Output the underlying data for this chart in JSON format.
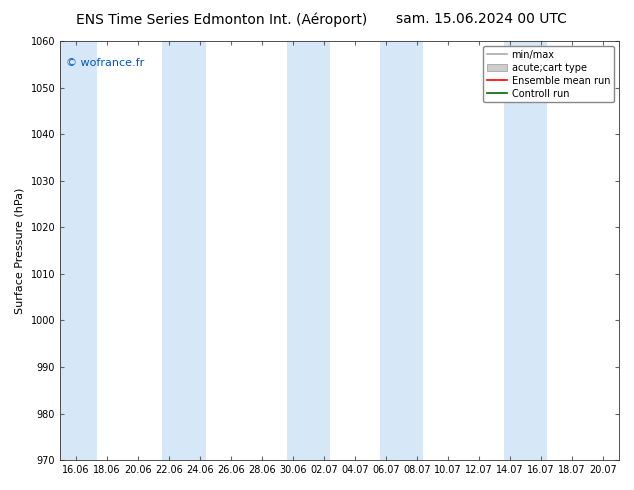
{
  "title_left": "ENS Time Series Edmonton Int. (Aéroport)",
  "title_right": "sam. 15.06.2024 00 UTC",
  "ylabel": "Surface Pressure (hPa)",
  "ylim": [
    970,
    1060
  ],
  "yticks": [
    970,
    980,
    990,
    1000,
    1010,
    1020,
    1030,
    1040,
    1050,
    1060
  ],
  "xtick_labels": [
    "16.06",
    "18.06",
    "20.06",
    "22.06",
    "24.06",
    "26.06",
    "28.06",
    "30.06",
    "02.07",
    "04.07",
    "06.07",
    "08.07",
    "10.07",
    "12.07",
    "14.07",
    "16.07",
    "18.07",
    "20.07"
  ],
  "background_color": "#ffffff",
  "plot_bg_color": "#ffffff",
  "shaded_band_color": "#d6e8f7",
  "shaded_ranges": [
    [
      -0.5,
      0.7
    ],
    [
      2.8,
      4.2
    ],
    [
      6.8,
      8.2
    ],
    [
      9.8,
      11.2
    ],
    [
      13.8,
      15.2
    ]
  ],
  "watermark_text": "© wofrance.fr",
  "watermark_color": "#0055cc",
  "legend_entries": [
    {
      "label": "min/max",
      "color": "#aaaaaa",
      "lw": 1.2,
      "type": "line"
    },
    {
      "label": "acute;cart type",
      "color": "#cccccc",
      "lw": 8,
      "type": "patch"
    },
    {
      "label": "Ensemble mean run",
      "color": "#ff0000",
      "lw": 1.2,
      "type": "line"
    },
    {
      "label": "Controll run",
      "color": "#006600",
      "lw": 1.2,
      "type": "line"
    }
  ],
  "title_fontsize": 10,
  "tick_fontsize": 7,
  "ylabel_fontsize": 8,
  "watermark_fontsize": 8,
  "legend_fontsize": 7
}
